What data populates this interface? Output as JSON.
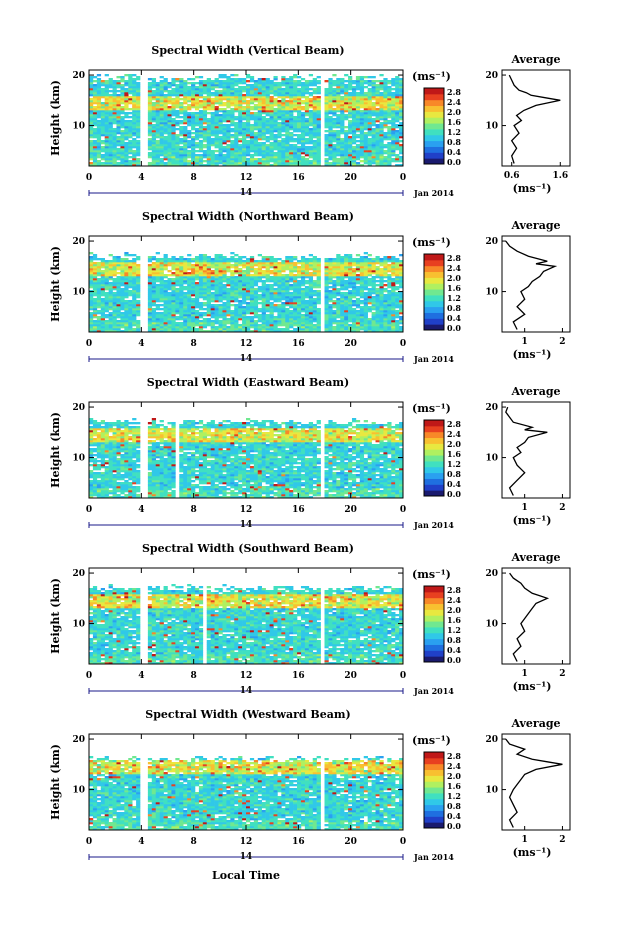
{
  "chart_data": [
    {
      "type": "heatmap",
      "title": "Spectral Width (Vertical Beam)",
      "ylabel": "Height (km)",
      "yticks": [
        "20",
        "10"
      ],
      "ylim": [
        2,
        21
      ],
      "xticks": [
        "0",
        "4",
        "8",
        "12",
        "16",
        "20",
        "0"
      ],
      "xlim": [
        0,
        24
      ],
      "date_index": "14",
      "date_label": "Jan 2014",
      "gaps_hours": [
        [
          4.0,
          4.4
        ],
        [
          5.6,
          5.8
        ],
        [
          8.0,
          8.2
        ],
        [
          8.6,
          8.8
        ],
        [
          17.6,
          17.9
        ]
      ],
      "colorbar": {
        "unit": "(ms⁻¹)",
        "ticks": [
          "2.8",
          "2.4",
          "2.0",
          "1.6",
          "1.2",
          "0.8",
          "0.4",
          "0.0"
        ]
      },
      "average": {
        "title": "Average",
        "xticks": [
          "0.6",
          "1.6"
        ],
        "xlim": [
          0.4,
          1.8
        ],
        "xlabel": "(ms⁻¹)",
        "yticks": [
          "20",
          "10"
        ],
        "height_km": [
          2.5,
          4,
          5.5,
          7,
          8.5,
          10,
          11,
          12,
          13,
          14,
          15,
          15.5,
          16,
          16.5,
          17,
          18,
          19,
          20
        ],
        "values": [
          0.65,
          0.6,
          0.7,
          0.6,
          0.75,
          0.65,
          0.8,
          0.7,
          0.85,
          1.1,
          1.6,
          1.3,
          1.0,
          0.9,
          0.75,
          0.65,
          0.6,
          0.55
        ]
      }
    },
    {
      "type": "heatmap",
      "title": "Spectral Width (Northward Beam)",
      "ylabel": "Height (km)",
      "yticks": [
        "20",
        "10"
      ],
      "ylim": [
        2,
        21
      ],
      "xticks": [
        "0",
        "4",
        "8",
        "12",
        "16",
        "20",
        "0"
      ],
      "xlim": [
        0,
        24
      ],
      "date_index": "14",
      "date_label": "Jan 2014",
      "gaps_hours": [
        [
          4.0,
          4.4
        ],
        [
          5.6,
          5.8
        ],
        [
          8.0,
          8.2
        ],
        [
          8.6,
          8.8
        ],
        [
          17.6,
          17.9
        ]
      ],
      "colorbar": {
        "unit": "(ms⁻¹)",
        "ticks": [
          "2.8",
          "2.4",
          "2.0",
          "1.6",
          "1.2",
          "0.8",
          "0.4",
          "0.0"
        ]
      },
      "average": {
        "title": "Average",
        "xticks": [
          "1",
          "2"
        ],
        "xlim": [
          0.4,
          2.2
        ],
        "xlabel": "(ms⁻¹)",
        "yticks": [
          "20",
          "10"
        ],
        "height_km": [
          2.5,
          4,
          5.5,
          7,
          8.5,
          10,
          11,
          12,
          13,
          14,
          15,
          15.5,
          16,
          17,
          18,
          19,
          20
        ],
        "values": [
          0.8,
          0.7,
          1.0,
          0.8,
          1.0,
          0.9,
          1.1,
          1.2,
          1.4,
          1.5,
          1.8,
          1.3,
          1.6,
          1.1,
          0.8,
          0.6,
          0.5
        ]
      }
    },
    {
      "type": "heatmap",
      "title": "Spectral Width (Eastward Beam)",
      "ylabel": "Height (km)",
      "yticks": [
        "20",
        "10"
      ],
      "ylim": [
        2,
        21
      ],
      "xticks": [
        "0",
        "4",
        "8",
        "12",
        "16",
        "20",
        "0"
      ],
      "xlim": [
        0,
        24
      ],
      "date_index": "14",
      "date_label": "Jan 2014",
      "gaps_hours": [
        [
          4.0,
          4.4
        ],
        [
          5.6,
          5.8
        ],
        [
          6.6,
          6.8
        ],
        [
          8.0,
          8.2
        ],
        [
          8.6,
          8.8
        ],
        [
          17.6,
          17.9
        ]
      ],
      "colorbar": {
        "unit": "(ms⁻¹)",
        "ticks": [
          "2.8",
          "2.4",
          "2.0",
          "1.6",
          "1.2",
          "0.8",
          "0.4",
          "0.0"
        ]
      },
      "average": {
        "title": "Average",
        "xticks": [
          "1",
          "2"
        ],
        "xlim": [
          0.4,
          2.2
        ],
        "xlabel": "(ms⁻¹)",
        "yticks": [
          "20",
          "10"
        ],
        "height_km": [
          2.5,
          4,
          5.5,
          7,
          8.5,
          10,
          11,
          12,
          13,
          14,
          15,
          15.5,
          16,
          17,
          18,
          19,
          20
        ],
        "values": [
          0.7,
          0.6,
          0.8,
          1.0,
          0.8,
          0.7,
          0.9,
          0.8,
          1.0,
          1.1,
          1.6,
          1.0,
          1.2,
          0.7,
          0.6,
          0.5,
          0.55
        ]
      }
    },
    {
      "type": "heatmap",
      "title": "Spectral Width (Southward Beam)",
      "ylabel": "Height (km)",
      "yticks": [
        "20",
        "10"
      ],
      "ylim": [
        2,
        21
      ],
      "xticks": [
        "0",
        "4",
        "8",
        "12",
        "16",
        "20",
        "0"
      ],
      "xlim": [
        0,
        24
      ],
      "date_index": "14",
      "date_label": "Jan 2014",
      "gaps_hours": [
        [
          4.0,
          4.4
        ],
        [
          5.6,
          5.8
        ],
        [
          8.6,
          9.0
        ],
        [
          17.6,
          17.9
        ]
      ],
      "colorbar": {
        "unit": "(ms⁻¹)",
        "ticks": [
          "2.8",
          "2.4",
          "2.0",
          "1.6",
          "1.2",
          "0.8",
          "0.4",
          "0.0"
        ]
      },
      "average": {
        "title": "Average",
        "xticks": [
          "1",
          "2"
        ],
        "xlim": [
          0.4,
          2.2
        ],
        "xlabel": "(ms⁻¹)",
        "yticks": [
          "20",
          "10"
        ],
        "height_km": [
          2.5,
          4,
          5.5,
          7,
          8.5,
          10,
          11,
          12,
          13,
          14,
          15,
          15.5,
          16,
          17,
          18,
          19,
          20
        ],
        "values": [
          0.8,
          0.7,
          0.9,
          0.8,
          1.0,
          0.9,
          1.0,
          1.1,
          1.2,
          1.3,
          1.6,
          1.4,
          1.2,
          1.0,
          0.9,
          0.7,
          0.6
        ]
      }
    },
    {
      "type": "heatmap",
      "title": "Spectral Width (Westward Beam)",
      "ylabel": "Height (km)",
      "yticks": [
        "20",
        "10"
      ],
      "ylim": [
        2,
        21
      ],
      "xticks": [
        "0",
        "4",
        "8",
        "12",
        "16",
        "20",
        "0"
      ],
      "xlim": [
        0,
        24
      ],
      "date_index": "14",
      "date_label": "Jan 2014",
      "gaps_hours": [
        [
          4.0,
          4.4
        ],
        [
          5.6,
          5.8
        ],
        [
          8.0,
          8.2
        ],
        [
          8.6,
          8.8
        ],
        [
          17.6,
          17.9
        ]
      ],
      "colorbar": {
        "unit": "(ms⁻¹)",
        "ticks": [
          "2.8",
          "2.4",
          "2.0",
          "1.6",
          "1.2",
          "0.8",
          "0.4",
          "0.0"
        ]
      },
      "average": {
        "title": "Average",
        "xticks": [
          "1",
          "2"
        ],
        "xlim": [
          0.4,
          2.2
        ],
        "xlabel": "(ms⁻¹)",
        "yticks": [
          "20",
          "10"
        ],
        "height_km": [
          2.5,
          4,
          5.5,
          7,
          8.5,
          10,
          11,
          12,
          13,
          14,
          15,
          15.5,
          16,
          17,
          18,
          19,
          20
        ],
        "values": [
          0.7,
          0.6,
          0.8,
          0.7,
          0.6,
          0.7,
          0.8,
          0.9,
          1.0,
          1.3,
          2.0,
          1.6,
          1.2,
          0.8,
          1.0,
          0.6,
          0.5
        ]
      }
    }
  ],
  "xaxis_label": "Local Time"
}
